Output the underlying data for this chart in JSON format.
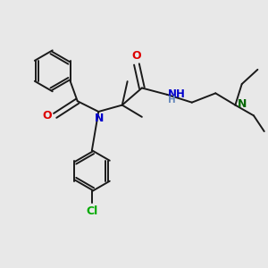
{
  "background_color": "#e8e8e8",
  "bond_color": "#1a1a1a",
  "bond_width": 1.4,
  "atom_colors": {
    "O": "#dd0000",
    "N_amide": "#0000cc",
    "N_amine": "#006600",
    "Cl": "#00aa00",
    "NH_color": "#4466aa"
  },
  "figsize": [
    3.0,
    3.0
  ],
  "dpi": 100,
  "xlim": [
    0,
    10
  ],
  "ylim": [
    0,
    10
  ]
}
